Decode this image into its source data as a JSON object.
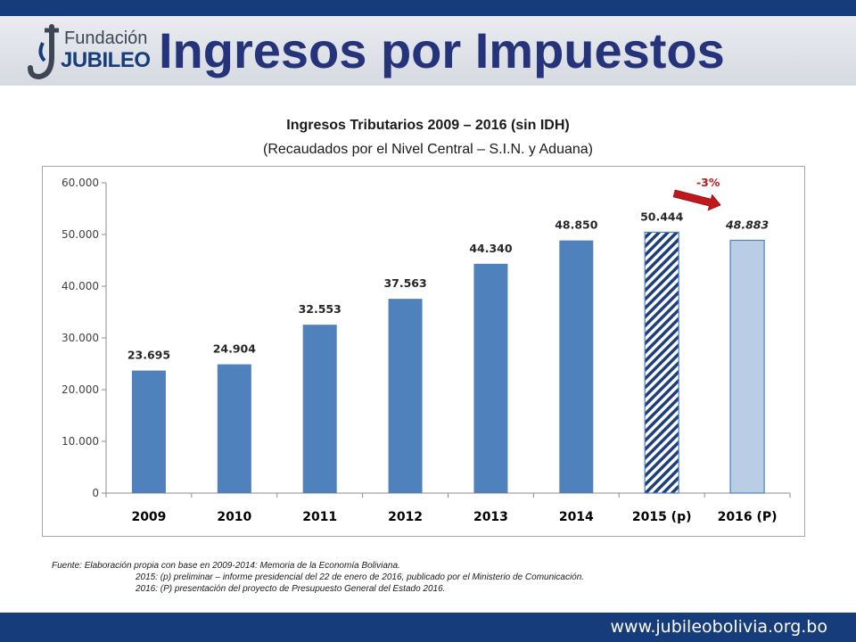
{
  "header": {
    "title": "Ingresos por Impuestos",
    "logo_line1": "Fundación",
    "logo_line2": "JUBILEO"
  },
  "colors": {
    "bar": "#4f81bd",
    "bar_light": "#b9cde5",
    "hatch": "#1f3f7a",
    "arrow": "#c0181b",
    "band": "#163c7c"
  },
  "chart_data": {
    "type": "bar",
    "title": "Ingresos Tributarios 2009 – 2016 (sin IDH)",
    "subtitle": "(Recaudados por el Nivel Central – S.I.N. y Aduana)",
    "categories": [
      "2009",
      "2010",
      "2011",
      "2012",
      "2013",
      "2014",
      "2015 (p)",
      "2016 (P)"
    ],
    "values": [
      23695,
      24904,
      32553,
      37563,
      44340,
      48850,
      50444,
      48883
    ],
    "value_labels": [
      "23.695",
      "24.904",
      "32.553",
      "37.563",
      "44.340",
      "48.850",
      "50.444",
      "48.883"
    ],
    "bar_styles": [
      "solid",
      "solid",
      "solid",
      "solid",
      "solid",
      "solid",
      "hatched",
      "light"
    ],
    "ylim": [
      0,
      60000
    ],
    "yticks": [
      0,
      10000,
      20000,
      30000,
      40000,
      50000,
      60000
    ],
    "ytick_labels": [
      "0",
      "10.000",
      "20.000",
      "30.000",
      "40.000",
      "50.000",
      "60.000"
    ],
    "grid": false,
    "legend": "none",
    "annotation": {
      "text": "-3%",
      "from": "2015 (p)",
      "to": "2016 (P)"
    },
    "xlabel": "",
    "ylabel": ""
  },
  "source": {
    "line1": "Fuente: Elaboración propia con base en 2009-2014: Memoria de la Economía Boliviana.",
    "line2": "2015: (p) preliminar – informe presidencial del 22 de enero de 2016, publicado por el Ministerio de Comunicación.",
    "line3": "2016: (P) presentación del proyecto de Presupuesto General del Estado 2016."
  },
  "footer": {
    "url": "www.jubileobolivia.org.bo"
  }
}
